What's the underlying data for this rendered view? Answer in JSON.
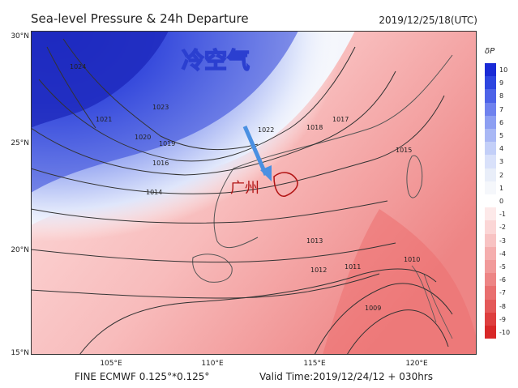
{
  "header": {
    "title": "Sea-level Pressure & 24h Departure",
    "timestamp": "2019/12/25/18(UTC)"
  },
  "footer": {
    "model": "FINE ECMWF 0.125°*0.125°",
    "valid_time": "Valid Time:2019/12/24/12 + 030hrs"
  },
  "axes": {
    "lat_labels": [
      "30°N",
      "25°N",
      "20°N",
      "15°N"
    ],
    "lon_labels": [
      "105°E",
      "110°E",
      "115°E",
      "120°E"
    ]
  },
  "annotations": {
    "cold_air_label": "冷空气",
    "city_label": "广州"
  },
  "isobars": [
    "1024",
    "1023",
    "1022",
    "1021",
    "1020",
    "1019",
    "1018",
    "1017",
    "1016",
    "1015",
    "1014",
    "1013",
    "1012",
    "1011",
    "1010",
    "1009"
  ],
  "colorbar": {
    "title": "δP",
    "levels": [
      "10",
      "9",
      "8",
      "7",
      "6",
      "5",
      "4",
      "3",
      "2",
      "1",
      "0",
      "-1",
      "-2",
      "-3",
      "-4",
      "-5",
      "-6",
      "-7",
      "-8",
      "-9",
      "-10"
    ],
    "colors": [
      "#1a2bd6",
      "#2e46e0",
      "#4d63e8",
      "#6f82ee",
      "#8d9ff2",
      "#a9b8f5",
      "#c3cff8",
      "#d9e1fa",
      "#e9eef9",
      "#f5f7fb",
      "#ffffff",
      "#fde9e9",
      "#fbd6d6",
      "#f8c3c3",
      "#f5aeae",
      "#f19a9a",
      "#ed8585",
      "#e96f6f",
      "#e45959",
      "#de3f3f",
      "#d82828"
    ]
  },
  "colors": {
    "arrow": "#4a90e2",
    "city": "#b21414"
  }
}
